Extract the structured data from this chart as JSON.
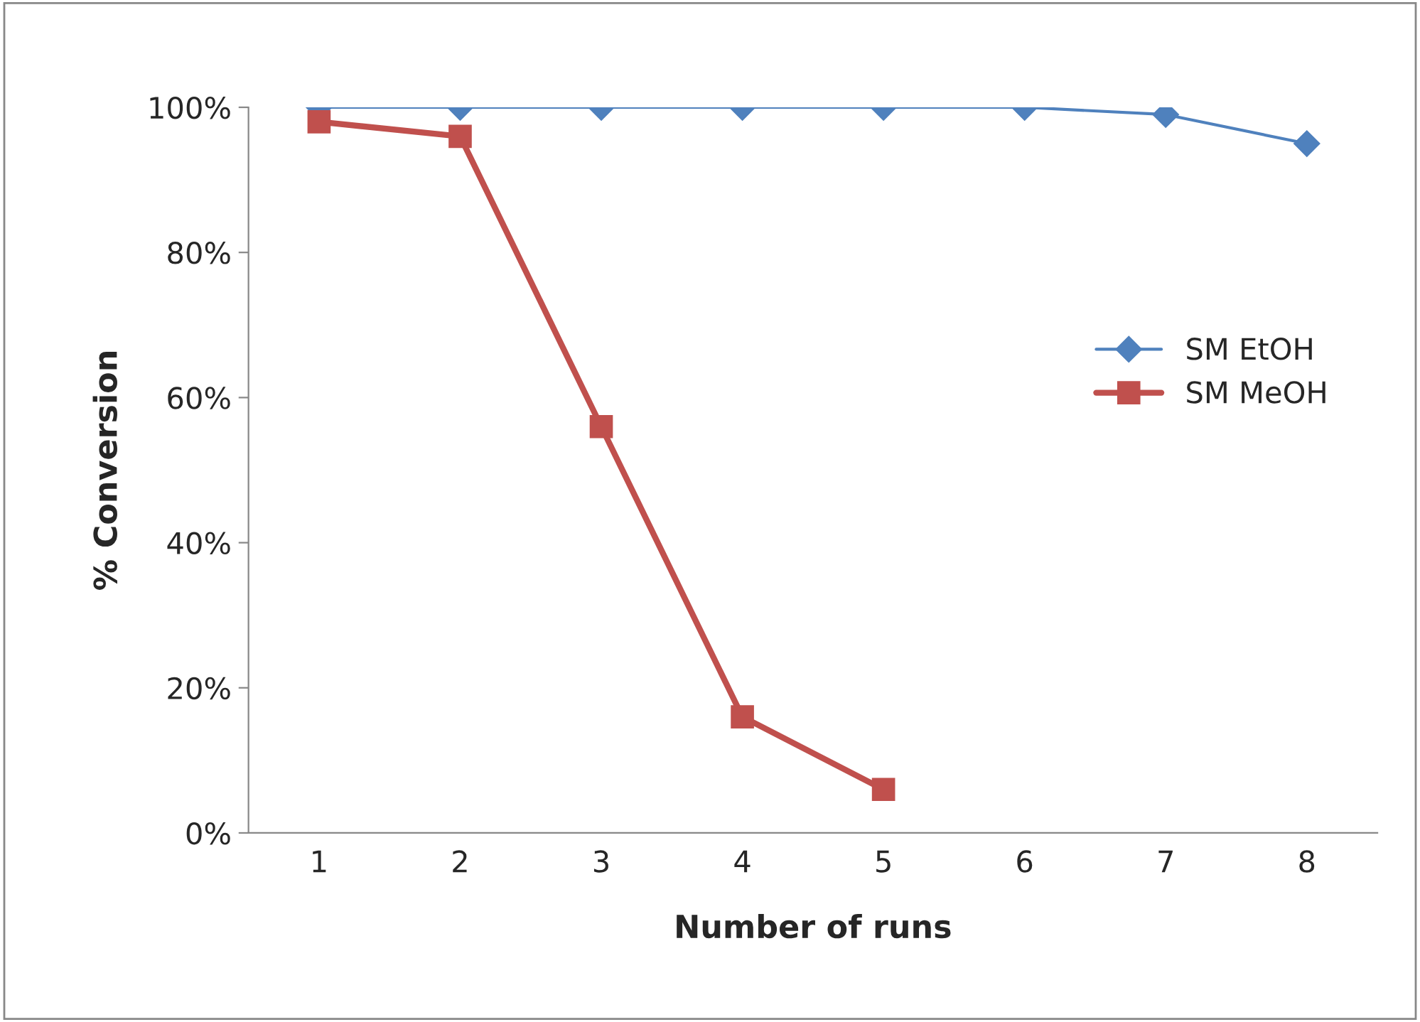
{
  "chart_data": {
    "type": "line",
    "xlabel": "Number of runs",
    "ylabel": "% Conversion",
    "categories": [
      "1",
      "2",
      "3",
      "4",
      "5",
      "6",
      "7",
      "8"
    ],
    "series": [
      {
        "name": "SM EtOH",
        "color": "#4f81bd",
        "marker": "diamond",
        "values": [
          100,
          100,
          100,
          100,
          100,
          100,
          99,
          95
        ]
      },
      {
        "name": "SM MeOH",
        "color": "#c0504d",
        "marker": "square",
        "values": [
          98,
          96,
          56,
          16,
          6,
          null,
          null,
          null
        ]
      }
    ],
    "ylim": [
      0,
      100
    ],
    "yticks": [
      {
        "value": 0,
        "label": "0%"
      },
      {
        "value": 20,
        "label": "20%"
      },
      {
        "value": 40,
        "label": "40%"
      },
      {
        "value": 60,
        "label": "60%"
      },
      {
        "value": 80,
        "label": "80%"
      },
      {
        "value": 100,
        "label": "100%"
      }
    ],
    "grid": false,
    "legend": "right",
    "line_style": "solid"
  }
}
